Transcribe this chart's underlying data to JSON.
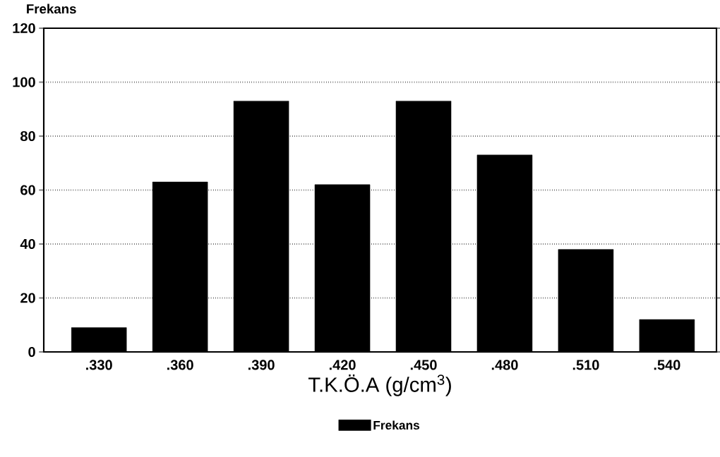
{
  "chart_data": {
    "type": "bar",
    "categories": [
      ".330",
      ".360",
      ".390",
      ".420",
      ".450",
      ".480",
      ".510",
      ".540"
    ],
    "series": [
      {
        "name": "Frekans",
        "color": "#000000",
        "values": [
          9,
          63,
          93,
          62,
          93,
          73,
          38,
          12
        ]
      }
    ],
    "xlabel": "T.K.Ö.A (g/cm$^{3}$)",
    "ylabel": "Frekans",
    "ylim": [
      0,
      120
    ],
    "yticks": [
      0,
      20,
      40,
      60,
      80,
      100,
      120
    ],
    "grid": "y",
    "legend": "bottom"
  }
}
